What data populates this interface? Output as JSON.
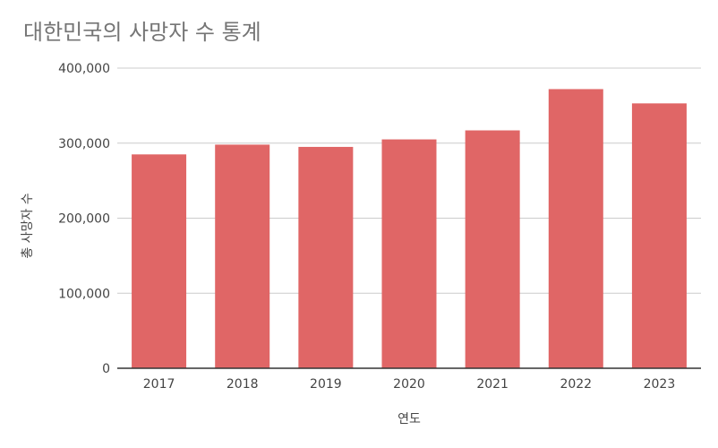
{
  "chart_data": {
    "type": "bar",
    "title": "대한민국의 사망자 수 통계",
    "xlabel": "연도",
    "ylabel": "총 사망자 수",
    "categories": [
      "2017",
      "2018",
      "2019",
      "2020",
      "2021",
      "2022",
      "2023"
    ],
    "series": [
      {
        "values": [
          285000,
          298000,
          295000,
          305000,
          317000,
          372000,
          353000
        ]
      }
    ],
    "ylim": [
      0,
      400000
    ],
    "yticks": [
      0,
      100000,
      200000,
      300000,
      400000
    ],
    "ytick_labels": [
      "0",
      "100,000",
      "200,000",
      "300,000",
      "400,000"
    ],
    "grid": true,
    "legend": "none",
    "bar_color": "#e06666"
  }
}
